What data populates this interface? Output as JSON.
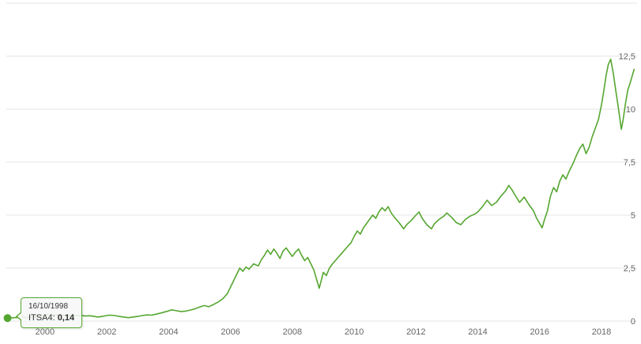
{
  "chart_data": {
    "type": "line",
    "title": "",
    "xlabel": "",
    "ylabel": "",
    "xlim": [
      1998.75,
      2019.15
    ],
    "ylim": [
      0,
      15
    ],
    "grid": true,
    "legend": "none",
    "colors": {
      "line": "#55a630",
      "grid": "#e6e6e6",
      "axis_label": "#666666"
    },
    "y_ticks": [
      {
        "v": 0,
        "label": "0"
      },
      {
        "v": 2.5,
        "label": "2,5"
      },
      {
        "v": 5,
        "label": "5"
      },
      {
        "v": 7.5,
        "label": "7,5"
      },
      {
        "v": 10,
        "label": "10"
      },
      {
        "v": 12.5,
        "label": "12,5"
      },
      {
        "v": 15,
        "label": ""
      }
    ],
    "x_ticks": [
      {
        "v": 2000,
        "label": "2000"
      },
      {
        "v": 2002,
        "label": "2002"
      },
      {
        "v": 2004,
        "label": "2004"
      },
      {
        "v": 2006,
        "label": "2006"
      },
      {
        "v": 2008,
        "label": "2008"
      },
      {
        "v": 2010,
        "label": "2010"
      },
      {
        "v": 2012,
        "label": "2012"
      },
      {
        "v": 2014,
        "label": "2014"
      },
      {
        "v": 2016,
        "label": "2016"
      },
      {
        "v": 2018,
        "label": "2018"
      }
    ],
    "series": [
      {
        "name": "ITSA4",
        "points": [
          [
            1998.79,
            0.14
          ],
          [
            1998.85,
            0.16
          ],
          [
            1998.95,
            0.15
          ],
          [
            1999.05,
            0.17
          ],
          [
            1999.15,
            0.16
          ],
          [
            1999.25,
            0.18
          ],
          [
            1999.4,
            0.17
          ],
          [
            1999.5,
            0.19
          ],
          [
            1999.6,
            0.18
          ],
          [
            1999.75,
            0.21
          ],
          [
            1999.9,
            0.24
          ],
          [
            2000.0,
            0.29
          ],
          [
            2000.1,
            0.32
          ],
          [
            2000.2,
            0.28
          ],
          [
            2000.3,
            0.3
          ],
          [
            2000.45,
            0.27
          ],
          [
            2000.6,
            0.28
          ],
          [
            2000.75,
            0.26
          ],
          [
            2000.9,
            0.27
          ],
          [
            2001.0,
            0.26
          ],
          [
            2001.15,
            0.27
          ],
          [
            2001.3,
            0.24
          ],
          [
            2001.45,
            0.25
          ],
          [
            2001.6,
            0.22
          ],
          [
            2001.7,
            0.19
          ],
          [
            2001.85,
            0.22
          ],
          [
            2002.0,
            0.26
          ],
          [
            2002.1,
            0.28
          ],
          [
            2002.25,
            0.26
          ],
          [
            2002.4,
            0.22
          ],
          [
            2002.55,
            0.19
          ],
          [
            2002.7,
            0.16
          ],
          [
            2002.85,
            0.19
          ],
          [
            2003.0,
            0.22
          ],
          [
            2003.15,
            0.26
          ],
          [
            2003.3,
            0.29
          ],
          [
            2003.45,
            0.28
          ],
          [
            2003.6,
            0.33
          ],
          [
            2003.75,
            0.38
          ],
          [
            2003.9,
            0.44
          ],
          [
            2004.0,
            0.48
          ],
          [
            2004.1,
            0.53
          ],
          [
            2004.25,
            0.49
          ],
          [
            2004.4,
            0.45
          ],
          [
            2004.55,
            0.47
          ],
          [
            2004.7,
            0.52
          ],
          [
            2004.85,
            0.58
          ],
          [
            2005.0,
            0.66
          ],
          [
            2005.15,
            0.73
          ],
          [
            2005.3,
            0.68
          ],
          [
            2005.45,
            0.78
          ],
          [
            2005.6,
            0.9
          ],
          [
            2005.75,
            1.05
          ],
          [
            2005.9,
            1.3
          ],
          [
            2006.0,
            1.6
          ],
          [
            2006.1,
            1.9
          ],
          [
            2006.2,
            2.2
          ],
          [
            2006.3,
            2.5
          ],
          [
            2006.4,
            2.35
          ],
          [
            2006.5,
            2.55
          ],
          [
            2006.6,
            2.45
          ],
          [
            2006.75,
            2.7
          ],
          [
            2006.9,
            2.6
          ],
          [
            2007.0,
            2.9
          ],
          [
            2007.1,
            3.1
          ],
          [
            2007.2,
            3.35
          ],
          [
            2007.3,
            3.15
          ],
          [
            2007.4,
            3.4
          ],
          [
            2007.5,
            3.2
          ],
          [
            2007.6,
            2.95
          ],
          [
            2007.7,
            3.3
          ],
          [
            2007.8,
            3.45
          ],
          [
            2007.9,
            3.25
          ],
          [
            2008.0,
            3.05
          ],
          [
            2008.1,
            3.25
          ],
          [
            2008.2,
            3.4
          ],
          [
            2008.3,
            3.1
          ],
          [
            2008.4,
            2.85
          ],
          [
            2008.5,
            3.0
          ],
          [
            2008.6,
            2.7
          ],
          [
            2008.7,
            2.4
          ],
          [
            2008.8,
            1.9
          ],
          [
            2008.87,
            1.55
          ],
          [
            2008.95,
            2.0
          ],
          [
            2009.0,
            2.3
          ],
          [
            2009.1,
            2.15
          ],
          [
            2009.2,
            2.5
          ],
          [
            2009.3,
            2.7
          ],
          [
            2009.45,
            2.95
          ],
          [
            2009.6,
            3.2
          ],
          [
            2009.75,
            3.45
          ],
          [
            2009.9,
            3.7
          ],
          [
            2010.0,
            4.0
          ],
          [
            2010.1,
            4.25
          ],
          [
            2010.2,
            4.1
          ],
          [
            2010.3,
            4.4
          ],
          [
            2010.45,
            4.7
          ],
          [
            2010.6,
            5.0
          ],
          [
            2010.7,
            4.85
          ],
          [
            2010.8,
            5.15
          ],
          [
            2010.9,
            5.35
          ],
          [
            2011.0,
            5.2
          ],
          [
            2011.1,
            5.4
          ],
          [
            2011.2,
            5.1
          ],
          [
            2011.3,
            4.9
          ],
          [
            2011.45,
            4.65
          ],
          [
            2011.6,
            4.35
          ],
          [
            2011.7,
            4.55
          ],
          [
            2011.85,
            4.75
          ],
          [
            2012.0,
            5.0
          ],
          [
            2012.1,
            5.15
          ],
          [
            2012.2,
            4.85
          ],
          [
            2012.35,
            4.55
          ],
          [
            2012.5,
            4.35
          ],
          [
            2012.6,
            4.6
          ],
          [
            2012.75,
            4.8
          ],
          [
            2012.9,
            4.95
          ],
          [
            2013.0,
            5.1
          ],
          [
            2013.15,
            4.9
          ],
          [
            2013.3,
            4.65
          ],
          [
            2013.45,
            4.55
          ],
          [
            2013.6,
            4.8
          ],
          [
            2013.75,
            4.95
          ],
          [
            2013.9,
            5.05
          ],
          [
            2014.0,
            5.15
          ],
          [
            2014.15,
            5.4
          ],
          [
            2014.3,
            5.7
          ],
          [
            2014.45,
            5.45
          ],
          [
            2014.6,
            5.6
          ],
          [
            2014.75,
            5.9
          ],
          [
            2014.9,
            6.15
          ],
          [
            2015.0,
            6.4
          ],
          [
            2015.1,
            6.2
          ],
          [
            2015.2,
            5.95
          ],
          [
            2015.35,
            5.6
          ],
          [
            2015.5,
            5.85
          ],
          [
            2015.65,
            5.5
          ],
          [
            2015.8,
            5.2
          ],
          [
            2015.9,
            4.85
          ],
          [
            2016.0,
            4.6
          ],
          [
            2016.08,
            4.4
          ],
          [
            2016.15,
            4.75
          ],
          [
            2016.25,
            5.2
          ],
          [
            2016.35,
            5.9
          ],
          [
            2016.45,
            6.3
          ],
          [
            2016.55,
            6.1
          ],
          [
            2016.65,
            6.6
          ],
          [
            2016.75,
            6.9
          ],
          [
            2016.85,
            6.7
          ],
          [
            2016.95,
            7.05
          ],
          [
            2017.0,
            7.2
          ],
          [
            2017.1,
            7.5
          ],
          [
            2017.2,
            7.85
          ],
          [
            2017.3,
            8.15
          ],
          [
            2017.4,
            8.35
          ],
          [
            2017.5,
            7.9
          ],
          [
            2017.6,
            8.2
          ],
          [
            2017.7,
            8.7
          ],
          [
            2017.8,
            9.1
          ],
          [
            2017.9,
            9.5
          ],
          [
            2018.0,
            10.2
          ],
          [
            2018.08,
            10.9
          ],
          [
            2018.15,
            11.6
          ],
          [
            2018.22,
            12.1
          ],
          [
            2018.3,
            12.35
          ],
          [
            2018.38,
            11.7
          ],
          [
            2018.45,
            11.0
          ],
          [
            2018.52,
            10.3
          ],
          [
            2018.58,
            9.7
          ],
          [
            2018.64,
            9.05
          ],
          [
            2018.7,
            9.5
          ],
          [
            2018.78,
            10.3
          ],
          [
            2018.85,
            10.9
          ],
          [
            2018.92,
            11.2
          ],
          [
            2019.0,
            11.6
          ],
          [
            2019.06,
            11.9
          ]
        ]
      }
    ]
  },
  "tooltip": {
    "date": "16/10/1998",
    "series_label": "ITSA4:",
    "value": "0,14",
    "point": [
      1998.79,
      0.14
    ]
  }
}
